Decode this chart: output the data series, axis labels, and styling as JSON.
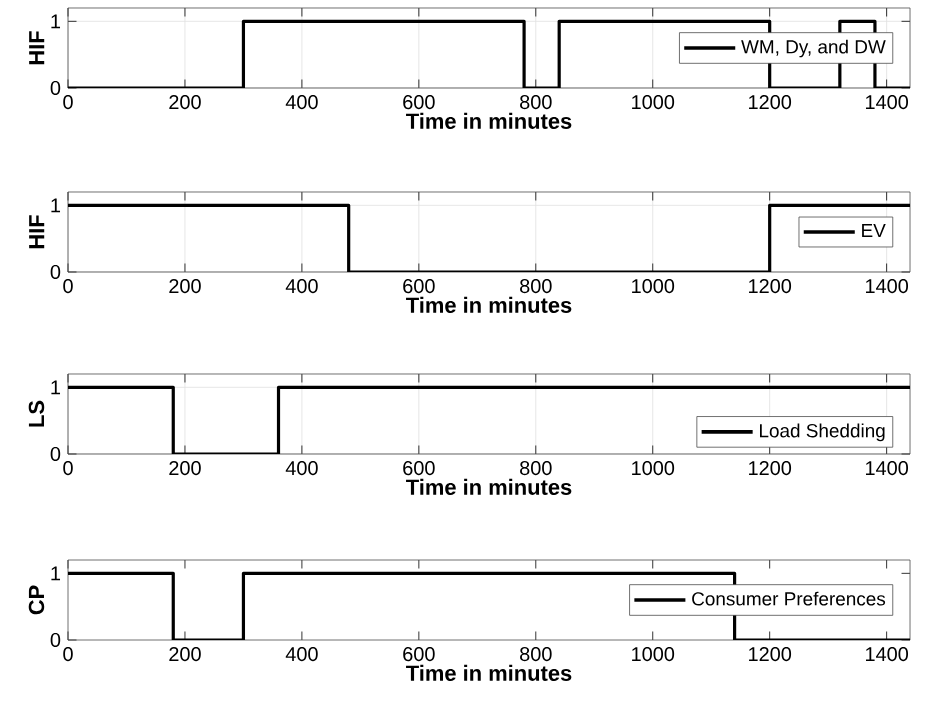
{
  "chart_data": [
    {
      "type": "step",
      "x": [
        0,
        300,
        780,
        840,
        1200,
        1320,
        1380,
        1440
      ],
      "series": [
        {
          "name": "WM, Dy, and DW",
          "color": "#000000",
          "values": [
            0,
            1,
            0,
            1,
            0,
            1,
            0,
            0
          ]
        }
      ],
      "xlim": [
        0,
        1440
      ],
      "xticks": [
        0,
        200,
        400,
        600,
        800,
        1000,
        1200,
        1400
      ],
      "ylim": [
        0,
        1.2
      ],
      "yticks": [
        0,
        1
      ],
      "xlabel": "Time in minutes",
      "ylabel": "HIF",
      "grid": true,
      "legend": "right",
      "marker": "none",
      "line_style": "solid"
    },
    {
      "type": "step",
      "x": [
        0,
        480,
        1200,
        1440
      ],
      "series": [
        {
          "name": "EV",
          "color": "#000000",
          "values": [
            1,
            0,
            1,
            1
          ]
        }
      ],
      "xlim": [
        0,
        1440
      ],
      "xticks": [
        0,
        200,
        400,
        600,
        800,
        1000,
        1200,
        1400
      ],
      "ylim": [
        0,
        1.2
      ],
      "yticks": [
        0,
        1
      ],
      "xlabel": "Time in minutes",
      "ylabel": "HIF",
      "grid": true,
      "legend": "right",
      "marker": "none",
      "line_style": "solid"
    },
    {
      "type": "step",
      "x": [
        0,
        180,
        360,
        1440
      ],
      "series": [
        {
          "name": "Load Shedding",
          "color": "#000000",
          "values": [
            1,
            0,
            1,
            1
          ]
        }
      ],
      "xlim": [
        0,
        1440
      ],
      "xticks": [
        0,
        200,
        400,
        600,
        800,
        1000,
        1200,
        1400
      ],
      "ylim": [
        0,
        1.2
      ],
      "yticks": [
        0,
        1
      ],
      "xlabel": "Time in minutes",
      "ylabel": "LS",
      "grid": true,
      "legend": "bottom right",
      "marker": "none",
      "line_style": "solid"
    },
    {
      "type": "step",
      "x": [
        0,
        180,
        300,
        1140,
        1440
      ],
      "series": [
        {
          "name": "Consumer Preferences",
          "color": "#000000",
          "values": [
            1,
            0,
            1,
            0,
            0
          ]
        }
      ],
      "xlim": [
        0,
        1440
      ],
      "xticks": [
        0,
        200,
        400,
        600,
        800,
        1000,
        1200,
        1400
      ],
      "ylim": [
        0,
        1.2
      ],
      "yticks": [
        0,
        1
      ],
      "xlabel": "Time in minutes",
      "ylabel": "CP",
      "grid": false,
      "legend": "right",
      "marker": "none",
      "line_style": "solid"
    }
  ]
}
